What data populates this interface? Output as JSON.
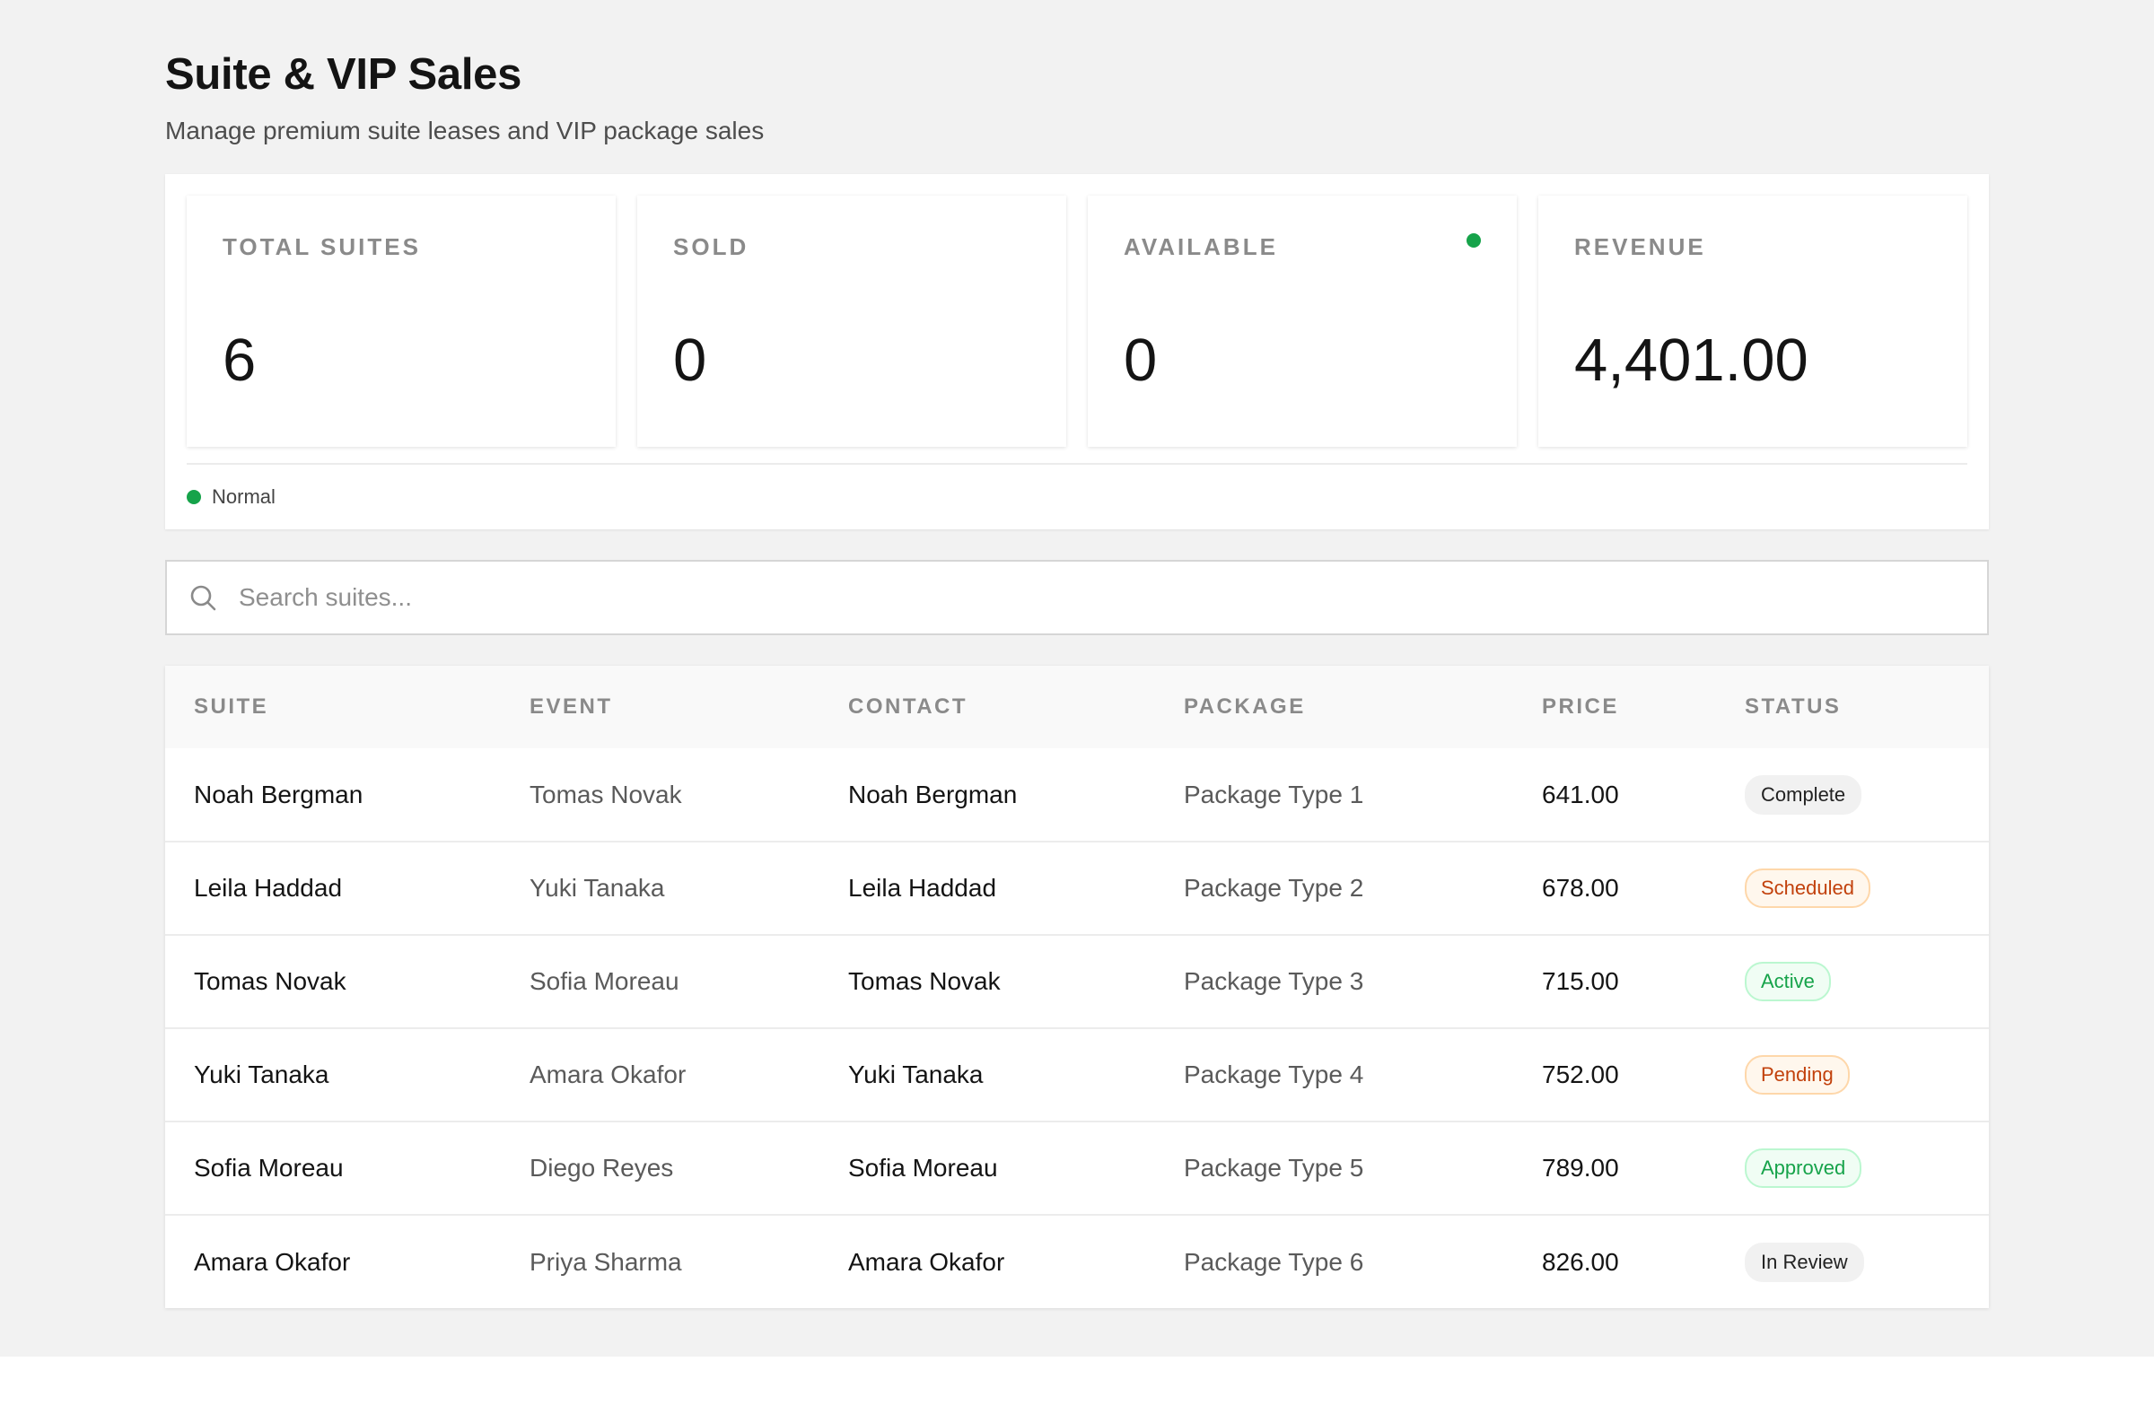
{
  "header": {
    "title": "Suite & VIP Sales",
    "subtitle": "Manage premium suite leases and VIP package sales"
  },
  "stats": [
    {
      "label": "TOTAL SUITES",
      "value": "6"
    },
    {
      "label": "SOLD",
      "value": "0"
    },
    {
      "label": "AVAILABLE",
      "value": "0",
      "indicator_color": "#16a34a"
    },
    {
      "label": "REVENUE",
      "value": "4,401.00"
    }
  ],
  "status": {
    "text": "Normal",
    "color": "#16a34a"
  },
  "search": {
    "placeholder": "Search suites...",
    "value": "",
    "icon": "search-icon"
  },
  "table": {
    "columns": [
      "SUITE",
      "EVENT",
      "CONTACT",
      "PACKAGE",
      "PRICE",
      "STATUS"
    ],
    "rows": [
      {
        "suite": "Noah Bergman",
        "event": "Tomas Novak",
        "contact": "Noah Bergman",
        "package": "Package Type 1",
        "price": "641.00",
        "status": "Complete",
        "status_style": "gray"
      },
      {
        "suite": "Leila Haddad",
        "event": "Yuki Tanaka",
        "contact": "Leila Haddad",
        "package": "Package Type 2",
        "price": "678.00",
        "status": "Scheduled",
        "status_style": "orange"
      },
      {
        "suite": "Tomas Novak",
        "event": "Sofia Moreau",
        "contact": "Tomas Novak",
        "package": "Package Type 3",
        "price": "715.00",
        "status": "Active",
        "status_style": "green"
      },
      {
        "suite": "Yuki Tanaka",
        "event": "Amara Okafor",
        "contact": "Yuki Tanaka",
        "package": "Package Type 4",
        "price": "752.00",
        "status": "Pending",
        "status_style": "orange"
      },
      {
        "suite": "Sofia Moreau",
        "event": "Diego Reyes",
        "contact": "Sofia Moreau",
        "package": "Package Type 5",
        "price": "789.00",
        "status": "Approved",
        "status_style": "green"
      },
      {
        "suite": "Amara Okafor",
        "event": "Priya Sharma",
        "contact": "Amara Okafor",
        "package": "Package Type 6",
        "price": "826.00",
        "status": "In Review",
        "status_style": "gray"
      }
    ]
  }
}
